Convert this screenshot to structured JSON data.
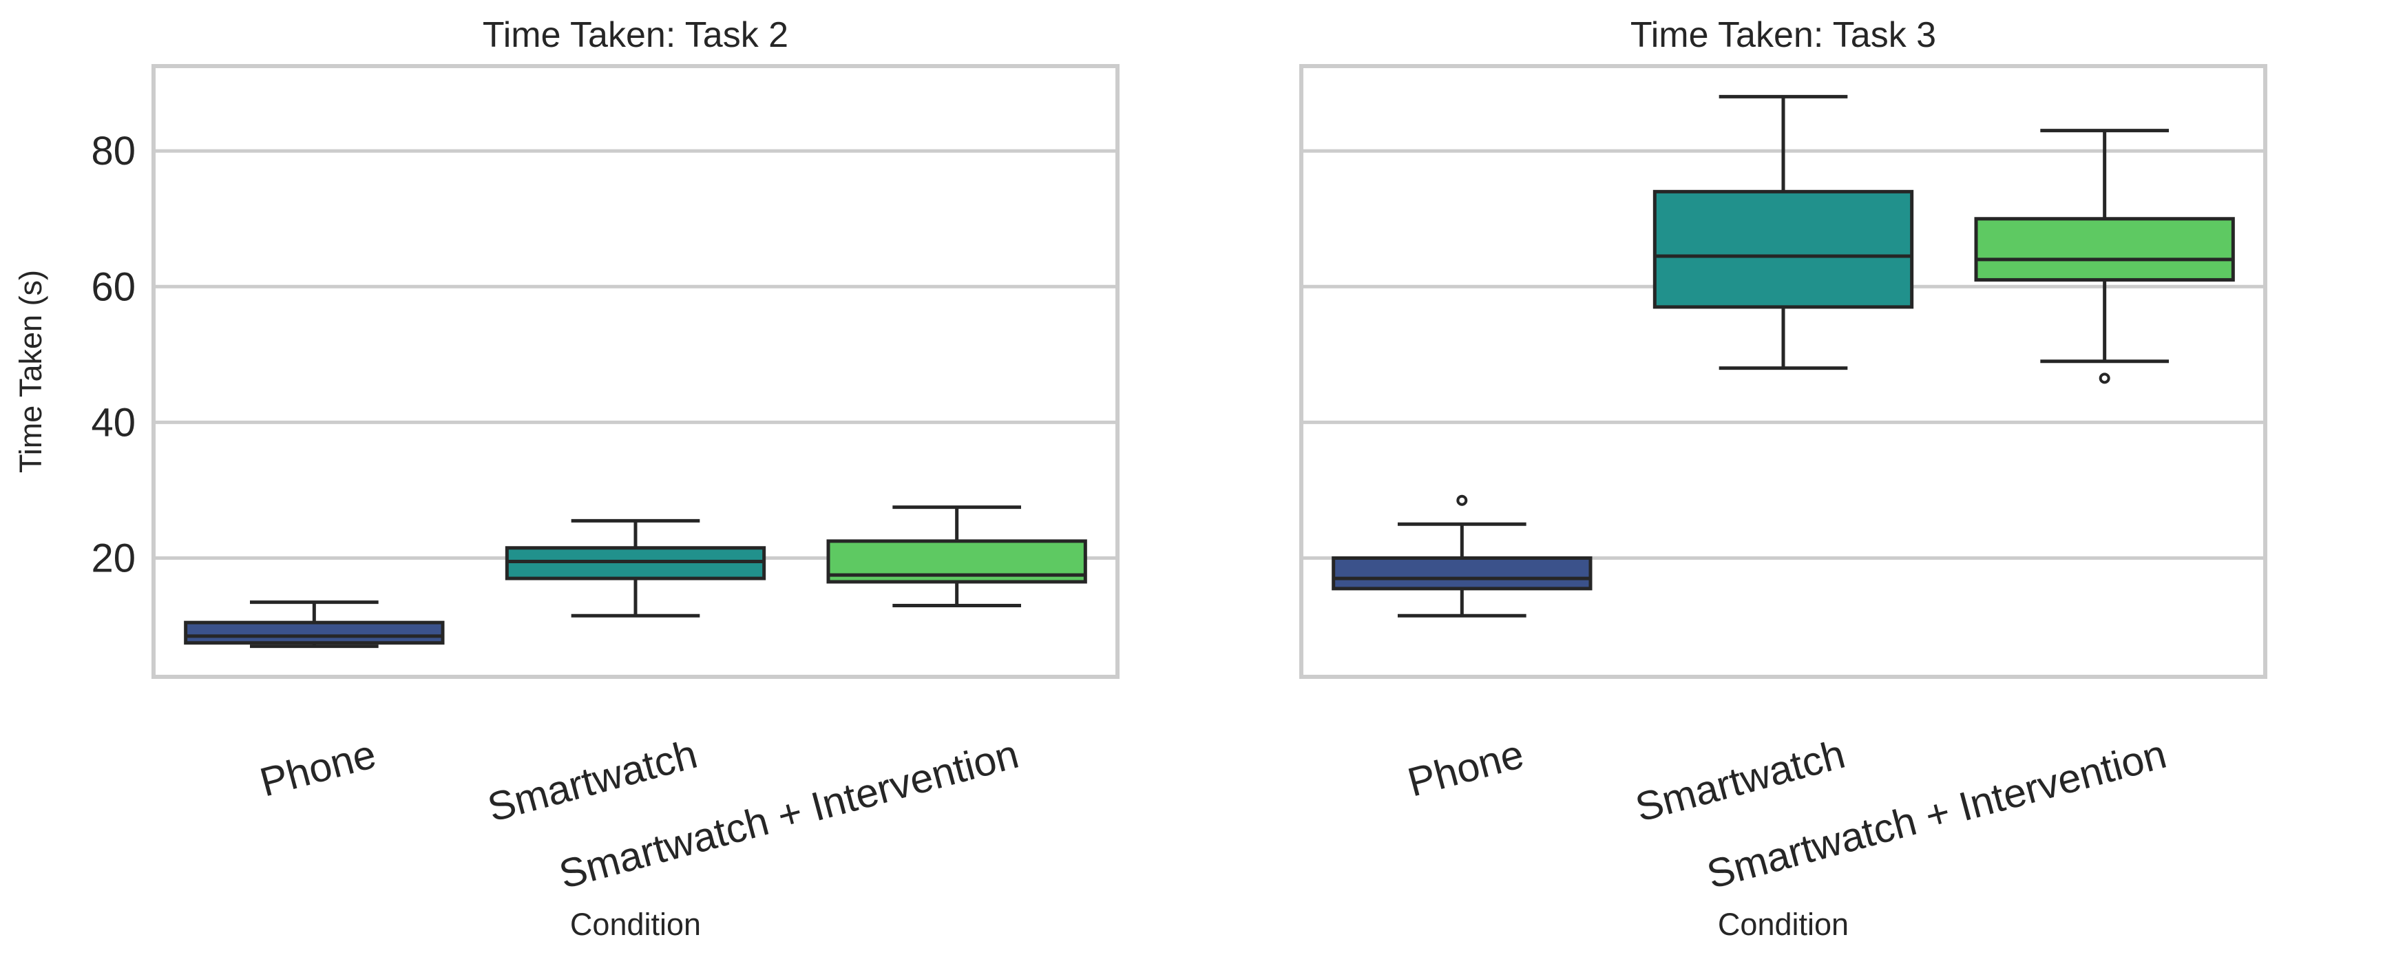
{
  "chart_data": [
    {
      "type": "box",
      "title": "Time Taken: Task 2",
      "xlabel": "Condition",
      "ylabel": "Time Taken (s)",
      "ylim": [
        2.5,
        92.5
      ],
      "yticks": [
        20,
        40,
        60,
        80
      ],
      "grid": true,
      "categories": [
        "Phone",
        "Smartwatch",
        "Smartwatch + Intervention"
      ],
      "colors": [
        "#3b528b",
        "#21918c",
        "#5ec962"
      ],
      "boxes": [
        {
          "name": "Phone",
          "whisker_low": 7.0,
          "q1": 7.5,
          "median": 8.5,
          "q3": 10.5,
          "whisker_high": 13.5,
          "outliers": []
        },
        {
          "name": "Smartwatch",
          "whisker_low": 11.5,
          "q1": 17.0,
          "median": 19.5,
          "q3": 21.5,
          "whisker_high": 25.5,
          "outliers": []
        },
        {
          "name": "Smartwatch + Intervention",
          "whisker_low": 13.0,
          "q1": 16.5,
          "median": 17.5,
          "q3": 22.5,
          "whisker_high": 27.5,
          "outliers": []
        }
      ]
    },
    {
      "type": "box",
      "title": "Time Taken: Task 3",
      "xlabel": "Condition",
      "ylabel": "",
      "ylim": [
        2.5,
        92.5
      ],
      "yticks": [
        20,
        40,
        60,
        80
      ],
      "grid": true,
      "categories": [
        "Phone",
        "Smartwatch",
        "Smartwatch + Intervention"
      ],
      "colors": [
        "#3b528b",
        "#21918c",
        "#5ec962"
      ],
      "boxes": [
        {
          "name": "Phone",
          "whisker_low": 11.5,
          "q1": 15.5,
          "median": 17.0,
          "q3": 20.0,
          "whisker_high": 25.0,
          "outliers": [
            28.5
          ]
        },
        {
          "name": "Smartwatch",
          "whisker_low": 48.0,
          "q1": 57.0,
          "median": 64.5,
          "q3": 74.0,
          "whisker_high": 88.0,
          "outliers": []
        },
        {
          "name": "Smartwatch + Intervention",
          "whisker_low": 49.0,
          "q1": 61.0,
          "median": 64.0,
          "q3": 70.0,
          "whisker_high": 83.0,
          "outliers": [
            46.5
          ]
        }
      ]
    }
  ]
}
